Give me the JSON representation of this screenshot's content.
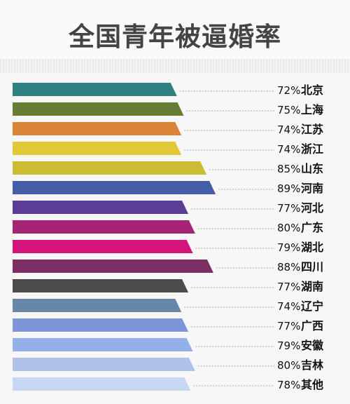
{
  "chart_data": {
    "type": "bar",
    "title": "全国青年被逼婚率",
    "categories": [
      "北京",
      "上海",
      "江苏",
      "浙江",
      "山东",
      "河南",
      "河北",
      "广东",
      "湖北",
      "四川",
      "湖南",
      "辽宁",
      "广西",
      "安徽",
      "吉林",
      "其他"
    ],
    "values": [
      72,
      75,
      74,
      74,
      85,
      89,
      77,
      80,
      79,
      88,
      77,
      74,
      77,
      79,
      80,
      78
    ],
    "value_labels": [
      "72%",
      "75%",
      "74%",
      "74%",
      "85%",
      "89%",
      "77%",
      "80%",
      "79%",
      "88%",
      "77%",
      "74%",
      "77%",
      "79%",
      "80%",
      "78%"
    ],
    "colors": [
      "#2f8183",
      "#667d33",
      "#d98437",
      "#e2c837",
      "#cbbc34",
      "#445da6",
      "#5b3d96",
      "#a52474",
      "#d4147a",
      "#7b2f63",
      "#4b4b4b",
      "#6687a7",
      "#7f95d9",
      "#95afe9",
      "#afc1e8",
      "#c9d7f3"
    ],
    "orientation": "horizontal"
  }
}
